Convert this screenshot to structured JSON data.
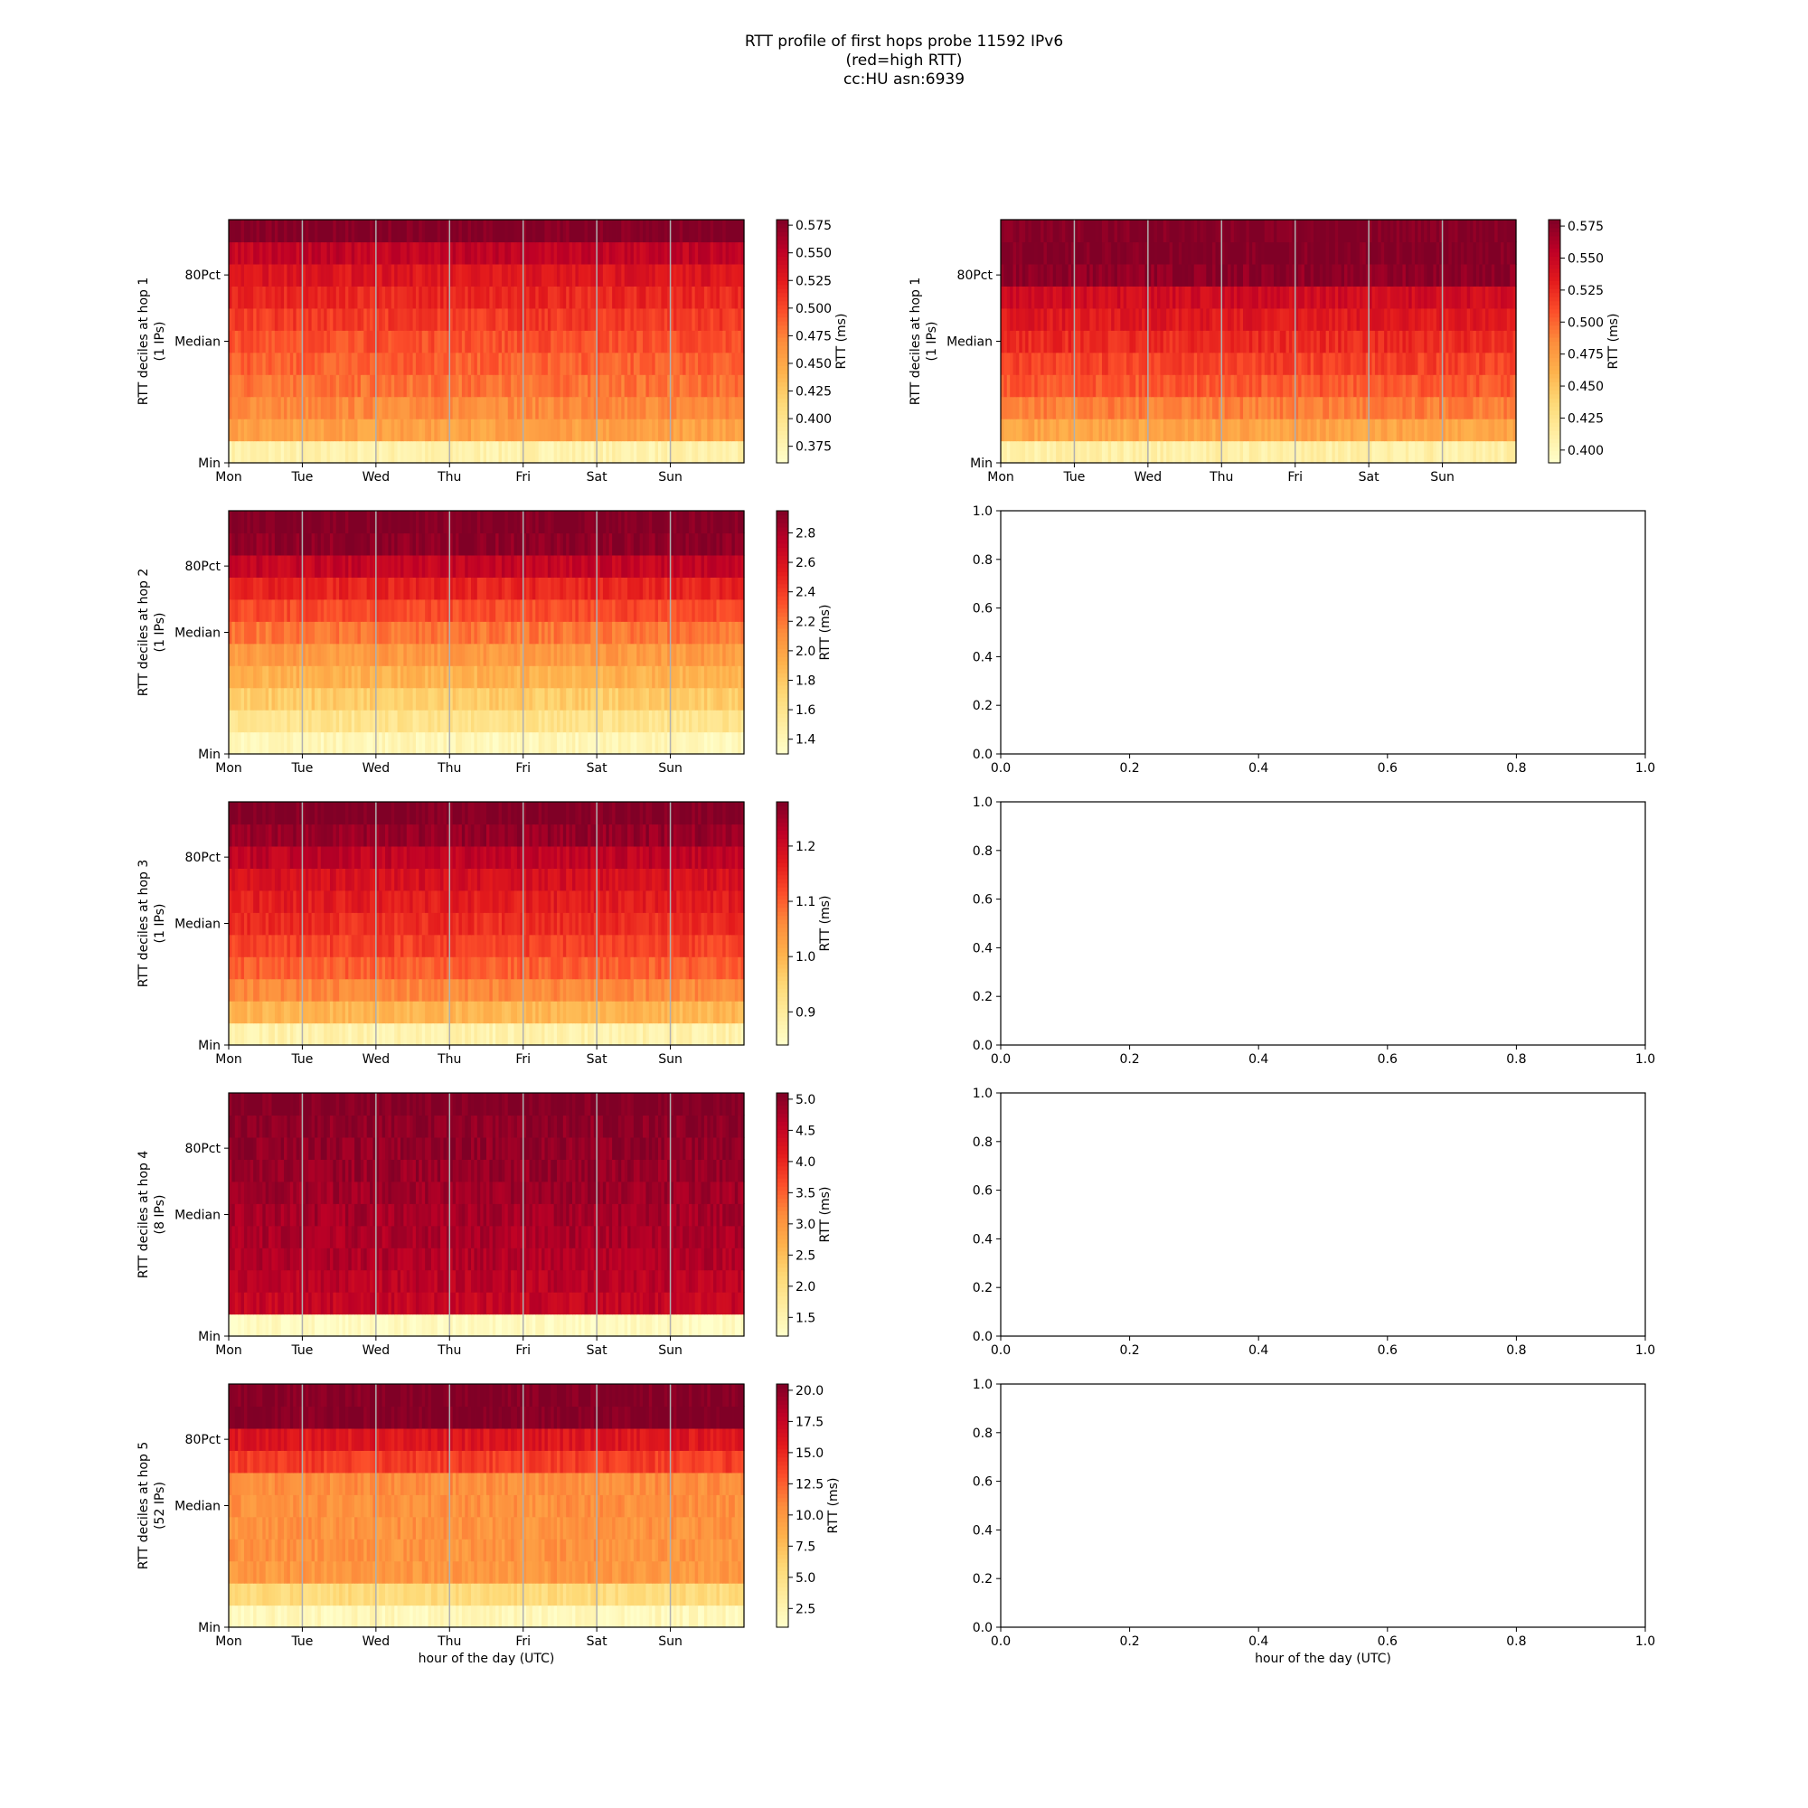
{
  "figure": {
    "title_lines": [
      "RTT profile of first hops probe 11592 IPv6",
      "(red=high RTT)",
      "cc:HU asn:6939"
    ]
  },
  "chart_data": [
    {
      "type": "heatmap",
      "ylabel": "RTT deciles at hop 1",
      "ylabel2": "(1 IPs)",
      "xlabel": "",
      "xticks": [
        "Mon",
        "Tue",
        "Wed",
        "Thu",
        "Fri",
        "Sat",
        "Sun"
      ],
      "yticks": [
        "Min",
        "Median",
        "80Pct"
      ],
      "colorbar": {
        "label": "RTT (ms)",
        "min": 0.36,
        "max": 0.58,
        "ticks": [
          "0.375",
          "0.400",
          "0.425",
          "0.450",
          "0.475",
          "0.500",
          "0.525",
          "0.550",
          "0.575"
        ]
      },
      "rows": 11,
      "values": [
        0.38,
        0.455,
        0.47,
        0.482,
        0.49,
        0.498,
        0.508,
        0.518,
        0.53,
        0.548,
        0.58
      ],
      "cmap": "YlOrRd"
    },
    {
      "type": "heatmap",
      "ylabel": "RTT deciles at hop 1",
      "ylabel2": "(1 IPs)",
      "xlabel": "",
      "xticks": [
        "Mon",
        "Tue",
        "Wed",
        "Thu",
        "Fri",
        "Sat",
        "Sun"
      ],
      "yticks": [
        "Min",
        "Median",
        "80Pct"
      ],
      "colorbar": {
        "label": "RTT (ms)",
        "min": 0.39,
        "max": 0.58,
        "ticks": [
          "0.400",
          "0.425",
          "0.450",
          "0.475",
          "0.500",
          "0.525",
          "0.550",
          "0.575"
        ]
      },
      "rows": 11,
      "values": [
        0.41,
        0.47,
        0.49,
        0.505,
        0.515,
        0.525,
        0.535,
        0.545,
        0.575,
        0.58,
        0.58
      ],
      "cmap": "YlOrRd"
    },
    {
      "type": "heatmap",
      "ylabel": "RTT deciles at hop 2",
      "ylabel2": "(1 IPs)",
      "xlabel": "",
      "xticks": [
        "Mon",
        "Tue",
        "Wed",
        "Thu",
        "Fri",
        "Sat",
        "Sun"
      ],
      "yticks": [
        "Min",
        "Median",
        "80Pct"
      ],
      "colorbar": {
        "label": "RTT (ms)",
        "min": 1.3,
        "max": 2.95,
        "ticks": [
          "1.4",
          "1.6",
          "1.8",
          "2.0",
          "2.2",
          "2.4",
          "2.6",
          "2.8"
        ]
      },
      "rows": 11,
      "values": [
        1.4,
        1.6,
        1.78,
        1.92,
        2.05,
        2.2,
        2.35,
        2.5,
        2.7,
        2.9,
        2.95
      ],
      "cmap": "YlOrRd"
    },
    {
      "type": "empty",
      "xlabel": "",
      "xticks": [
        "0.0",
        "0.2",
        "0.4",
        "0.6",
        "0.8",
        "1.0"
      ],
      "yticks": [
        "0.0",
        "0.2",
        "0.4",
        "0.6",
        "0.8",
        "1.0"
      ]
    },
    {
      "type": "heatmap",
      "ylabel": "RTT deciles at hop 3",
      "ylabel2": "(1 IPs)",
      "xlabel": "",
      "xticks": [
        "Mon",
        "Tue",
        "Wed",
        "Thu",
        "Fri",
        "Sat",
        "Sun"
      ],
      "yticks": [
        "Min",
        "Median",
        "80Pct"
      ],
      "colorbar": {
        "label": "RTT (ms)",
        "min": 0.84,
        "max": 1.28,
        "ticks": [
          "0.9",
          "1.0",
          "1.1",
          "1.2"
        ]
      },
      "rows": 11,
      "values": [
        0.88,
        1.0,
        1.06,
        1.1,
        1.13,
        1.15,
        1.17,
        1.19,
        1.22,
        1.26,
        1.28
      ],
      "cmap": "YlOrRd"
    },
    {
      "type": "empty",
      "xlabel": "",
      "xticks": [
        "0.0",
        "0.2",
        "0.4",
        "0.6",
        "0.8",
        "1.0"
      ],
      "yticks": [
        "0.0",
        "0.2",
        "0.4",
        "0.6",
        "0.8",
        "1.0"
      ]
    },
    {
      "type": "heatmap",
      "ylabel": "RTT deciles at hop 4",
      "ylabel2": "(8 IPs)",
      "xlabel": "",
      "xticks": [
        "Mon",
        "Tue",
        "Wed",
        "Thu",
        "Fri",
        "Sat",
        "Sun"
      ],
      "yticks": [
        "Min",
        "Median",
        "80Pct"
      ],
      "colorbar": {
        "label": "RTT (ms)",
        "min": 1.2,
        "max": 5.1,
        "ticks": [
          "1.5",
          "2.0",
          "2.5",
          "3.0",
          "3.5",
          "4.0",
          "4.5",
          "5.0"
        ]
      },
      "rows": 11,
      "values": [
        1.3,
        4.5,
        4.6,
        4.7,
        4.75,
        4.8,
        4.85,
        4.9,
        4.95,
        5.0,
        5.1
      ],
      "cmap": "YlOrRd"
    },
    {
      "type": "empty",
      "xlabel": "",
      "xticks": [
        "0.0",
        "0.2",
        "0.4",
        "0.6",
        "0.8",
        "1.0"
      ],
      "yticks": [
        "0.0",
        "0.2",
        "0.4",
        "0.6",
        "0.8",
        "1.0"
      ]
    },
    {
      "type": "heatmap",
      "ylabel": "RTT deciles at hop 5",
      "ylabel2": "(52 IPs)",
      "xlabel": "hour of the day (UTC)",
      "xticks": [
        "Mon",
        "Tue",
        "Wed",
        "Thu",
        "Fri",
        "Sat",
        "Sun"
      ],
      "yticks": [
        "Min",
        "Median",
        "80Pct"
      ],
      "colorbar": {
        "label": "RTT (ms)",
        "min": 1.0,
        "max": 20.5,
        "ticks": [
          "2.5",
          "5.0",
          "7.5",
          "10.0",
          "12.5",
          "15.0",
          "17.5",
          "20.0"
        ]
      },
      "rows": 11,
      "values": [
        2.0,
        5.5,
        10.0,
        10.2,
        10.3,
        10.4,
        10.6,
        14.0,
        16.0,
        20.5,
        20.5
      ],
      "cmap": "YlOrRd"
    },
    {
      "type": "empty",
      "xlabel": "hour of the day (UTC)",
      "xticks": [
        "0.0",
        "0.2",
        "0.4",
        "0.6",
        "0.8",
        "1.0"
      ],
      "yticks": [
        "0.0",
        "0.2",
        "0.4",
        "0.6",
        "0.8",
        "1.0"
      ]
    }
  ]
}
